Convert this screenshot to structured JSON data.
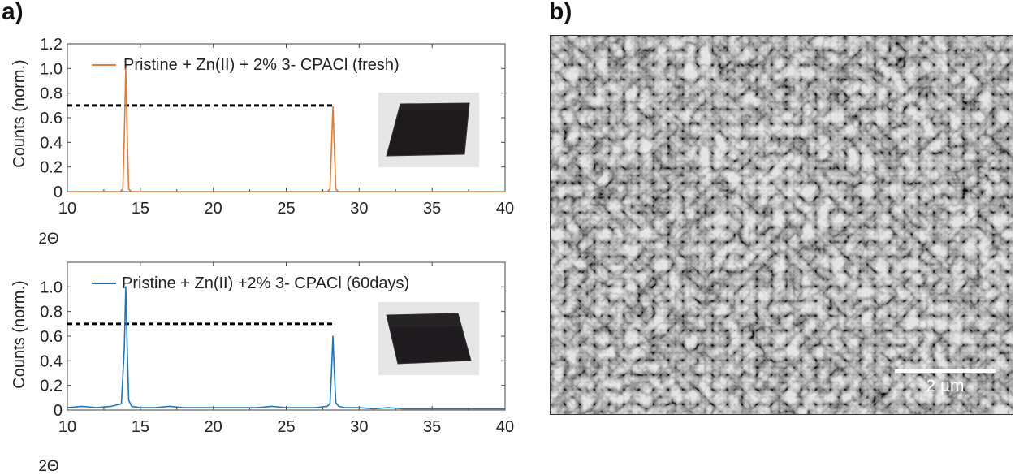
{
  "panel_labels": {
    "a": "a)",
    "b": "b)"
  },
  "chart_data": [
    {
      "type": "line",
      "xlabel": "2Θ",
      "ylabel": "Counts (norm.)",
      "xlim": [
        10,
        40
      ],
      "ylim": [
        0,
        1.2
      ],
      "x_ticks": [
        "10",
        "15",
        "20",
        "25",
        "30",
        "35",
        "40"
      ],
      "y_ticks": [
        "0",
        "0.2",
        "0.4",
        "0.6",
        "0.8",
        "1.0",
        "1.2"
      ],
      "series": [
        {
          "name": "Pristine + Zn(II) + 2% 3- CPACl (fresh)",
          "color": "#e07b39",
          "x": [
            10,
            13.6,
            13.8,
            13.9,
            14.0,
            14.1,
            14.2,
            14.4,
            27.8,
            28.0,
            28.1,
            28.2,
            28.3,
            28.4,
            28.6,
            40
          ],
          "y": [
            0,
            0,
            0.02,
            0.45,
            1.0,
            0.45,
            0.02,
            0,
            0,
            0.02,
            0.35,
            0.69,
            0.35,
            0.02,
            0,
            0
          ]
        }
      ],
      "reference_line": {
        "x_range": [
          10,
          28.2
        ],
        "y": 0.7,
        "style": "dashed"
      },
      "inset": "photo of dark film on glass substrate"
    },
    {
      "type": "line",
      "xlabel": "2Θ",
      "ylabel": "Counts (norm.)",
      "xlim": [
        10,
        40
      ],
      "ylim": [
        0,
        1.2
      ],
      "x_ticks": [
        "10",
        "15",
        "20",
        "25",
        "30",
        "35",
        "40"
      ],
      "y_ticks": [
        "0",
        "0.2",
        "0.4",
        "0.6",
        "0.8",
        "1.0"
      ],
      "series": [
        {
          "name": "Pristine + Zn(II) +2% 3- CPACl (60days)",
          "color": "#1f77b4",
          "x": [
            10,
            11,
            12,
            13,
            13.7,
            13.9,
            14.0,
            14.1,
            14.2,
            14.4,
            15,
            16,
            17,
            18,
            19,
            20,
            21,
            22,
            23,
            24,
            25,
            26,
            27,
            27.8,
            28.0,
            28.1,
            28.2,
            28.3,
            28.4,
            28.6,
            29,
            30,
            31,
            32,
            33,
            34,
            35,
            36,
            37,
            38,
            39,
            40
          ],
          "y": [
            0.02,
            0.03,
            0.02,
            0.03,
            0.05,
            0.5,
            1.0,
            0.5,
            0.08,
            0.03,
            0.02,
            0.02,
            0.03,
            0.02,
            0.02,
            0.02,
            0.02,
            0.02,
            0.02,
            0.03,
            0.02,
            0.02,
            0.02,
            0.03,
            0.05,
            0.3,
            0.6,
            0.3,
            0.06,
            0.03,
            0.02,
            0.02,
            0.01,
            0.02,
            0.01,
            0.01,
            0.01,
            0.01,
            0.01,
            0.01,
            0.01,
            0.01
          ]
        }
      ],
      "reference_line": {
        "x_range": [
          10,
          28.2
        ],
        "y": 0.7,
        "style": "dashed"
      },
      "inset": "photo of dark film on glass substrate"
    }
  ],
  "sem_image": {
    "scale_bar_label": "2 µm"
  }
}
